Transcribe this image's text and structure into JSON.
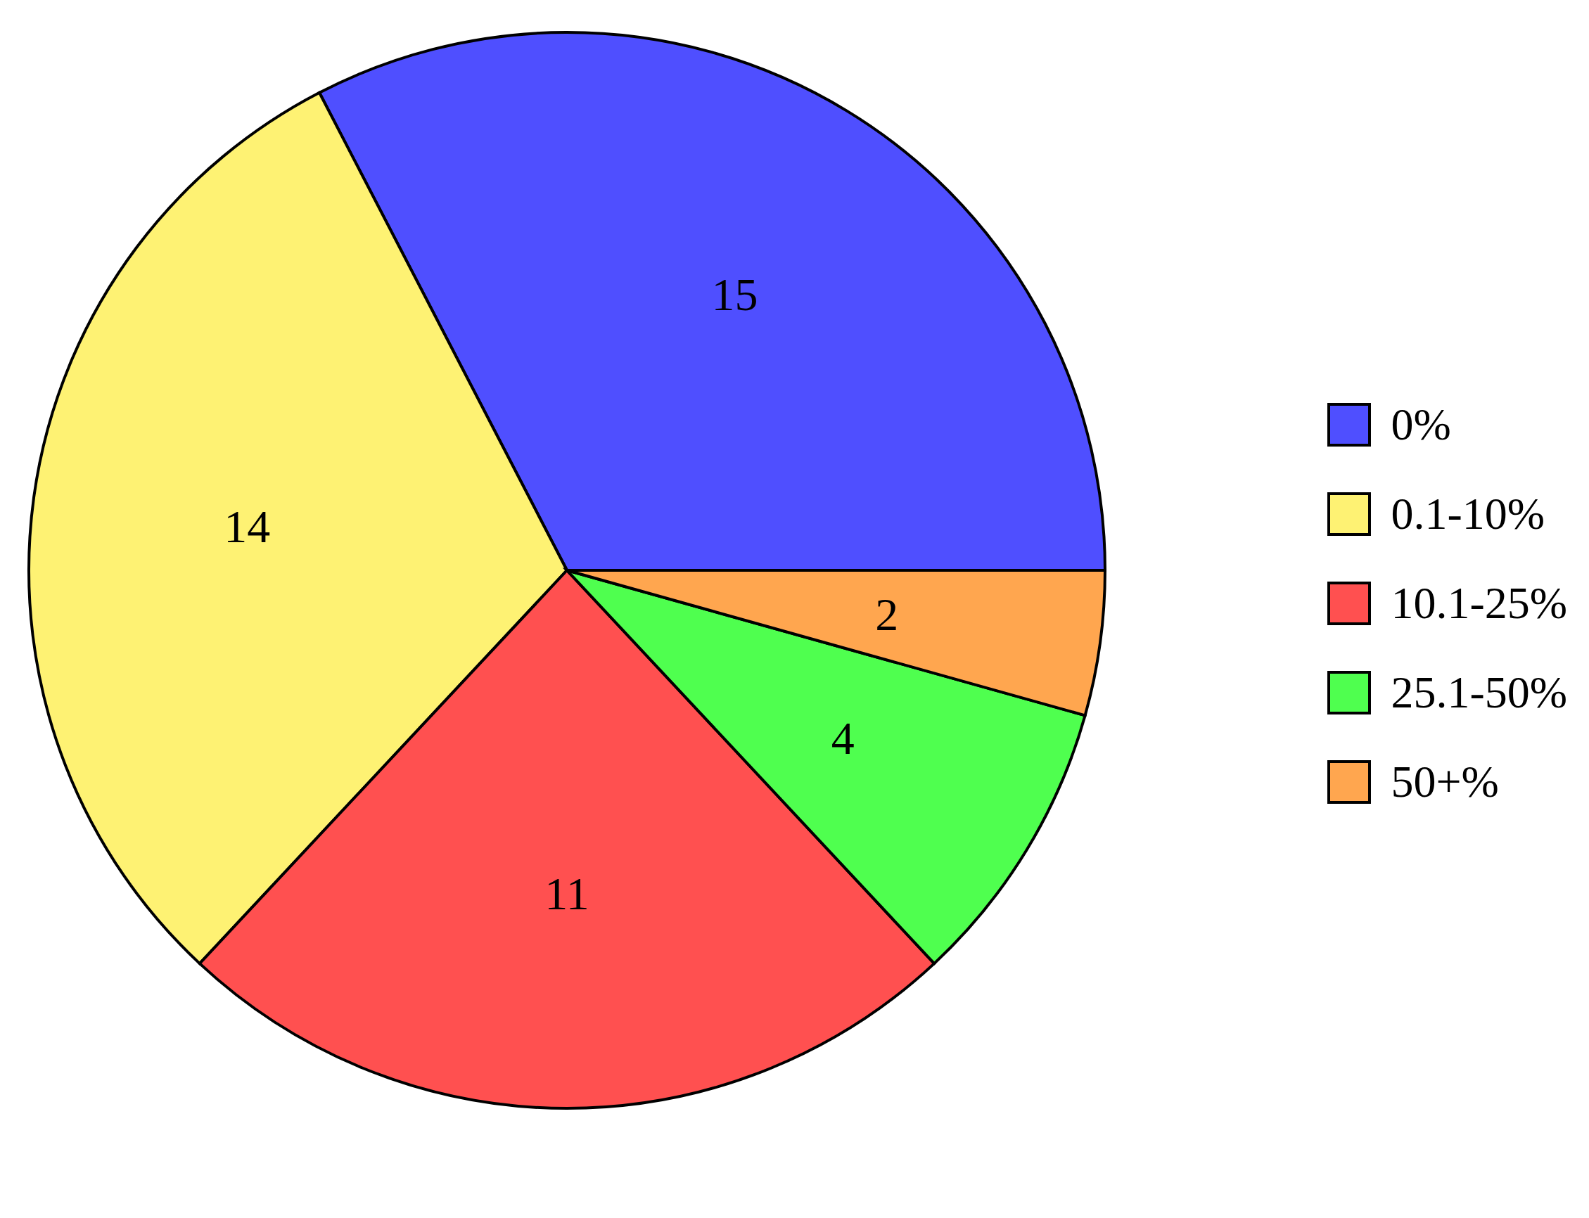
{
  "chart_data": {
    "type": "pie",
    "categories": [
      "0%",
      "0.1-10%",
      "10.1-25%",
      "25.1-50%",
      "50+%"
    ],
    "values": [
      15,
      14,
      11,
      4,
      2
    ],
    "colors": [
      "#4f4fff",
      "#fef273",
      "#ff5050",
      "#4fff4f",
      "#ffa64f"
    ],
    "data_labels": true,
    "legend": "right"
  }
}
